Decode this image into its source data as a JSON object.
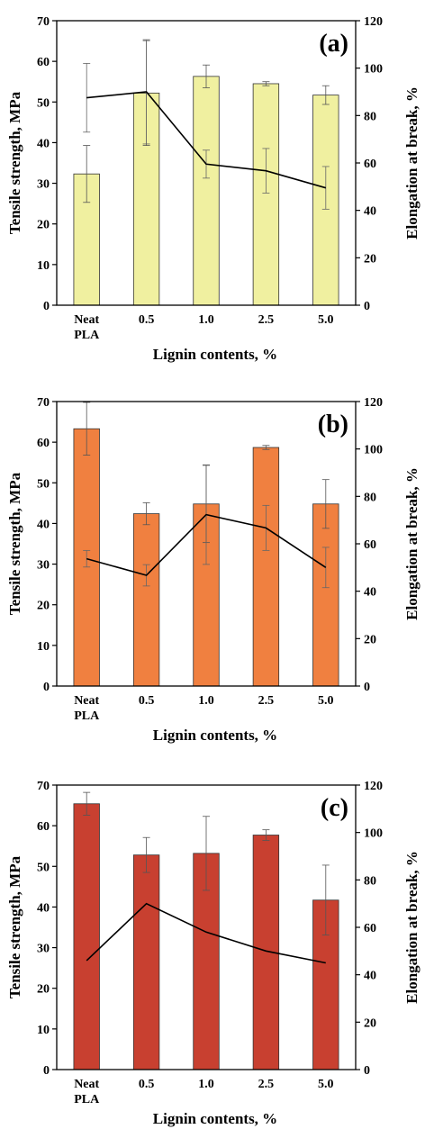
{
  "chart_data": [
    {
      "type": "bar",
      "panel_label": "(a)",
      "categories": [
        "Neat PLA",
        "0.5",
        "1.0",
        "2.5",
        "5.0"
      ],
      "xlabel": "Lignin contents, %",
      "ylabel": "Tensile strength, MPa",
      "y2label": "Elongation at break, %",
      "ylim": [
        0,
        70
      ],
      "y2lim": [
        0,
        120
      ],
      "yticks": [
        0,
        10,
        20,
        30,
        40,
        50,
        60,
        70
      ],
      "y2ticks": [
        0,
        20,
        40,
        60,
        80,
        100,
        120
      ],
      "bar_color": "#f0f0a0",
      "series": [
        {
          "kind": "bar",
          "axis": "left",
          "values": [
            32.3,
            52.2,
            56.3,
            54.5,
            51.7
          ],
          "errors": [
            7.0,
            12.9,
            2.8,
            0.5,
            2.3
          ]
        },
        {
          "kind": "line",
          "axis": "right",
          "values": [
            87.5,
            90.0,
            59.5,
            56.7,
            49.5
          ],
          "errors": [
            14.5,
            22.0,
            5.9,
            9.4,
            9.0
          ]
        }
      ],
      "grid": false
    },
    {
      "type": "bar",
      "panel_label": "(b)",
      "categories": [
        "Neat PLA",
        "0.5",
        "1.0",
        "2.5",
        "5.0"
      ],
      "xlabel": "Lignin contents, %",
      "ylabel": "Tensile strength, MPa",
      "y2label": "Elongation at break, %",
      "ylim": [
        0,
        70
      ],
      "y2lim": [
        0,
        120
      ],
      "yticks": [
        0,
        10,
        20,
        30,
        40,
        50,
        60,
        70
      ],
      "y2ticks": [
        0,
        20,
        40,
        60,
        80,
        100,
        120
      ],
      "bar_color": "#f08040",
      "series": [
        {
          "kind": "bar",
          "axis": "left",
          "values": [
            63.3,
            42.4,
            44.8,
            58.7,
            44.8
          ],
          "errors": [
            6.5,
            2.7,
            9.5,
            0.5,
            6.0
          ]
        },
        {
          "kind": "line",
          "axis": "right",
          "values": [
            53.7,
            46.7,
            72.3,
            66.7,
            50.0
          ],
          "errors": [
            3.5,
            4.5,
            21.0,
            9.5,
            8.5
          ]
        }
      ],
      "grid": false
    },
    {
      "type": "bar",
      "panel_label": "(c)",
      "categories": [
        "Neat PLA",
        "0.5",
        "1.0",
        "2.5",
        "5.0"
      ],
      "xlabel": "Lignin contents, %",
      "ylabel": "Tensile strength, MPa",
      "y2label": "Elongation at break, %",
      "ylim": [
        0,
        70
      ],
      "y2lim": [
        0,
        120
      ],
      "yticks": [
        0,
        10,
        20,
        30,
        40,
        50,
        60,
        70
      ],
      "y2ticks": [
        0,
        20,
        40,
        60,
        80,
        100,
        120
      ],
      "bar_color": "#c84030",
      "series": [
        {
          "kind": "bar",
          "axis": "left",
          "values": [
            65.4,
            52.8,
            53.2,
            57.7,
            41.7
          ],
          "errors": [
            2.8,
            4.3,
            9.1,
            1.3,
            8.6
          ]
        },
        {
          "kind": "line",
          "axis": "right",
          "values": [
            46.0,
            70.0,
            58.0,
            50.0,
            45.0
          ],
          "errors": [
            0,
            0,
            0,
            0,
            0
          ]
        }
      ],
      "grid": false
    }
  ]
}
